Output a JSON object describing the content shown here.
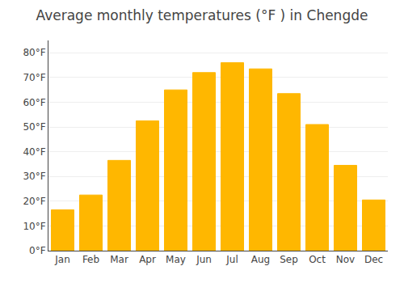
{
  "chart_data": {
    "type": "bar",
    "title": "Average monthly temperatures (°F ) in Chengde",
    "categories": [
      "Jan",
      "Feb",
      "Mar",
      "Apr",
      "May",
      "Jun",
      "Jul",
      "Aug",
      "Sep",
      "Oct",
      "Nov",
      "Dec"
    ],
    "values": [
      16.5,
      22.5,
      36.5,
      52.5,
      65,
      72,
      76,
      73.5,
      63.5,
      51,
      34.5,
      20.5
    ],
    "color": "#FFB700",
    "ylim": [
      0,
      85
    ],
    "yticks": [
      {
        "value": 0,
        "label": "0°F"
      },
      {
        "value": 10,
        "label": "10°F"
      },
      {
        "value": 20,
        "label": "20°F"
      },
      {
        "value": 30,
        "label": "30°F"
      },
      {
        "value": 40,
        "label": "40°F"
      },
      {
        "value": 50,
        "label": "50°F"
      },
      {
        "value": 60,
        "label": "60°F"
      },
      {
        "value": 70,
        "label": "70°F"
      },
      {
        "value": 80,
        "label": "80°F"
      }
    ],
    "grid": true
  }
}
